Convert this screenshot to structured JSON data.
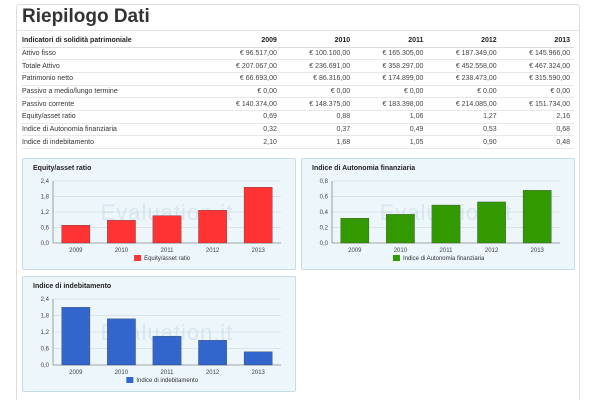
{
  "page": {
    "title": "Riepilogo Dati"
  },
  "table": {
    "headers": [
      "Indicatori di solidità patrimoniale",
      "2009",
      "2010",
      "2011",
      "2012",
      "2013"
    ],
    "rows": [
      [
        "Attivo fisso",
        "€ 96.517,00",
        "€ 100.100,00",
        "€ 165.305,00",
        "€ 187.349,00",
        "€ 145.966,00"
      ],
      [
        "Totale Attivo",
        "€ 207.067,00",
        "€ 236.691,00",
        "€ 358.297,00",
        "€ 452.558,00",
        "€ 467.324,00"
      ],
      [
        "Patrimonio netto",
        "€ 66.693,00",
        "€ 86.316,00",
        "€ 174.899,00",
        "€ 238.473,00",
        "€ 315.590,00"
      ],
      [
        "Passivo a medio/lungo termine",
        "€ 0,00",
        "€ 0,00",
        "€ 0,00",
        "€ 0,00",
        "€ 0,00"
      ],
      [
        "Passivo corrente",
        "€ 140.374,00",
        "€ 148.375,00",
        "€ 183.398,00",
        "€ 214.085,00",
        "€ 151.734,00"
      ],
      [
        "Equity/asset ratio",
        "0,69",
        "0,88",
        "1,06",
        "1,27",
        "2,16"
      ],
      [
        "Indice di Autonomia finanziaria",
        "0,32",
        "0,37",
        "0,49",
        "0,53",
        "0,68"
      ],
      [
        "Indice di indebitamento",
        "2,10",
        "1,68",
        "1,05",
        "0,90",
        "0,48"
      ]
    ]
  },
  "watermark": "Evaluation.it",
  "chart_data": [
    {
      "type": "bar",
      "title": "Equity/asset ratio",
      "categories": [
        "2009",
        "2010",
        "2011",
        "2012",
        "2013"
      ],
      "series": [
        {
          "name": "Equity/asset ratio",
          "values": [
            0.69,
            0.88,
            1.06,
            1.27,
            2.16
          ]
        }
      ],
      "ylim": [
        0,
        2.4
      ],
      "yticks": [
        "0,0",
        "0,6",
        "1,2",
        "1,8",
        "2,4"
      ],
      "ytick_values": [
        0,
        0.6,
        1.2,
        1.8,
        2.4
      ],
      "color": "#ff3333",
      "legend_position": "bottom"
    },
    {
      "type": "bar",
      "title": "Indice di Autonomia finanziaria",
      "categories": [
        "2009",
        "2010",
        "2011",
        "2012",
        "2013"
      ],
      "series": [
        {
          "name": "Indice di Autonomia finanziaria",
          "values": [
            0.32,
            0.37,
            0.49,
            0.53,
            0.68
          ]
        }
      ],
      "ylim": [
        0,
        0.8
      ],
      "yticks": [
        "0,0",
        "0,2",
        "0,4",
        "0,6",
        "0,8"
      ],
      "ytick_values": [
        0,
        0.2,
        0.4,
        0.6,
        0.8
      ],
      "color": "#339900",
      "legend_position": "bottom"
    },
    {
      "type": "bar",
      "title": "Indice di indebitamento",
      "categories": [
        "2009",
        "2010",
        "2011",
        "2012",
        "2013"
      ],
      "series": [
        {
          "name": "Indice di indebitamento",
          "values": [
            2.1,
            1.68,
            1.05,
            0.9,
            0.48
          ]
        }
      ],
      "ylim": [
        0,
        2.4
      ],
      "yticks": [
        "0,0",
        "0,6",
        "1,2",
        "1,8",
        "2,4"
      ],
      "ytick_values": [
        0,
        0.6,
        1.2,
        1.8,
        2.4
      ],
      "color": "#3366cc",
      "legend_position": "bottom"
    }
  ]
}
